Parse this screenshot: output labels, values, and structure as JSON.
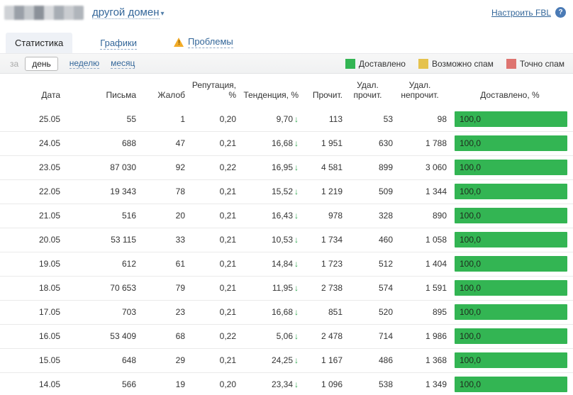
{
  "colors": {
    "delivered": "#33b553",
    "maybe_spam": "#e5c24d",
    "spam": "#de7470"
  },
  "icons": {
    "trend_down": "↓",
    "dropdown_arrow": "▾",
    "warning": "!",
    "help": "?"
  },
  "header": {
    "domain_selector": "другой домен",
    "fbl_link": "Настроить FBL"
  },
  "tabs": [
    {
      "label": "Статистика",
      "active": true
    },
    {
      "label": "Графики",
      "active": false
    },
    {
      "label": "Проблемы",
      "active": false,
      "warning": true
    }
  ],
  "period": {
    "prefix": "за",
    "options": [
      {
        "label": "день",
        "selected": true
      },
      {
        "label": "неделю",
        "selected": false
      },
      {
        "label": "месяц",
        "selected": false
      }
    ]
  },
  "legend": [
    {
      "label": "Доставлено",
      "color": "#33b553"
    },
    {
      "label": "Возможно спам",
      "color": "#e5c24d"
    },
    {
      "label": "Точно спам",
      "color": "#de7470"
    }
  ],
  "table": {
    "columns": [
      "Дата",
      "Письма",
      "Жалоб",
      "Репутация, %",
      "Тенденция, %",
      "Прочит.",
      "Удал. прочит.",
      "Удал. непрочит.",
      "Доставлено, %"
    ],
    "rows": [
      {
        "date": "25.05",
        "letters": "55",
        "complaints": "1",
        "reputation": "0,20",
        "tendency": "9,70",
        "trend": "down",
        "read": "113",
        "deleted_read": "53",
        "deleted_unread": "98",
        "delivered": "100,0",
        "delivered_pct": 100
      },
      {
        "date": "24.05",
        "letters": "688",
        "complaints": "47",
        "reputation": "0,21",
        "tendency": "16,68",
        "trend": "down",
        "read": "1 951",
        "deleted_read": "630",
        "deleted_unread": "1 788",
        "delivered": "100,0",
        "delivered_pct": 100
      },
      {
        "date": "23.05",
        "letters": "87 030",
        "complaints": "92",
        "reputation": "0,22",
        "tendency": "16,95",
        "trend": "down",
        "read": "4 581",
        "deleted_read": "899",
        "deleted_unread": "3 060",
        "delivered": "100,0",
        "delivered_pct": 100
      },
      {
        "date": "22.05",
        "letters": "19 343",
        "complaints": "78",
        "reputation": "0,21",
        "tendency": "15,52",
        "trend": "down",
        "read": "1 219",
        "deleted_read": "509",
        "deleted_unread": "1 344",
        "delivered": "100,0",
        "delivered_pct": 100
      },
      {
        "date": "21.05",
        "letters": "516",
        "complaints": "20",
        "reputation": "0,21",
        "tendency": "16,43",
        "trend": "down",
        "read": "978",
        "deleted_read": "328",
        "deleted_unread": "890",
        "delivered": "100,0",
        "delivered_pct": 100
      },
      {
        "date": "20.05",
        "letters": "53 115",
        "complaints": "33",
        "reputation": "0,21",
        "tendency": "10,53",
        "trend": "down",
        "read": "1 734",
        "deleted_read": "460",
        "deleted_unread": "1 058",
        "delivered": "100,0",
        "delivered_pct": 100
      },
      {
        "date": "19.05",
        "letters": "612",
        "complaints": "61",
        "reputation": "0,21",
        "tendency": "14,84",
        "trend": "down",
        "read": "1 723",
        "deleted_read": "512",
        "deleted_unread": "1 404",
        "delivered": "100,0",
        "delivered_pct": 100
      },
      {
        "date": "18.05",
        "letters": "70 653",
        "complaints": "79",
        "reputation": "0,21",
        "tendency": "11,95",
        "trend": "down",
        "read": "2 738",
        "deleted_read": "574",
        "deleted_unread": "1 591",
        "delivered": "100,0",
        "delivered_pct": 100
      },
      {
        "date": "17.05",
        "letters": "703",
        "complaints": "23",
        "reputation": "0,21",
        "tendency": "16,68",
        "trend": "down",
        "read": "851",
        "deleted_read": "520",
        "deleted_unread": "895",
        "delivered": "100,0",
        "delivered_pct": 100
      },
      {
        "date": "16.05",
        "letters": "53 409",
        "complaints": "68",
        "reputation": "0,22",
        "tendency": "5,06",
        "trend": "down",
        "read": "2 478",
        "deleted_read": "714",
        "deleted_unread": "1 986",
        "delivered": "100,0",
        "delivered_pct": 100
      },
      {
        "date": "15.05",
        "letters": "648",
        "complaints": "29",
        "reputation": "0,21",
        "tendency": "24,25",
        "trend": "down",
        "read": "1 167",
        "deleted_read": "486",
        "deleted_unread": "1 368",
        "delivered": "100,0",
        "delivered_pct": 100
      },
      {
        "date": "14.05",
        "letters": "566",
        "complaints": "19",
        "reputation": "0,20",
        "tendency": "23,34",
        "trend": "down",
        "read": "1 096",
        "deleted_read": "538",
        "deleted_unread": "1 349",
        "delivered": "100,0",
        "delivered_pct": 100
      }
    ]
  }
}
